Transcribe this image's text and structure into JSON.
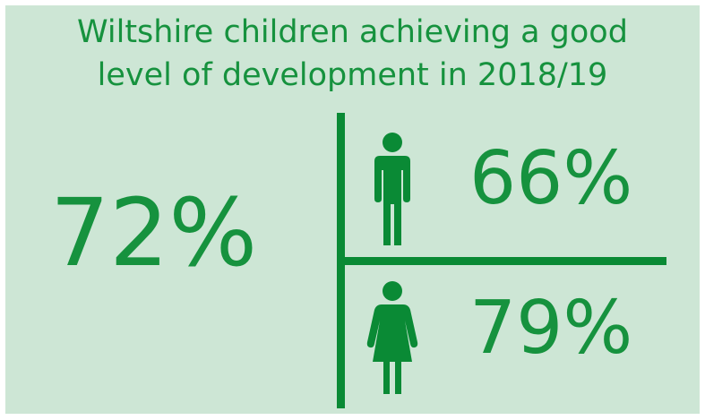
{
  "title": {
    "line1": "Wiltshire children achieving a good",
    "line2": "level of development in 2018/19"
  },
  "stats": {
    "overall": "72%",
    "boys": "66%",
    "girls": "79%"
  },
  "icons": {
    "boy": "male-figure-icon",
    "girl": "female-figure-icon"
  },
  "colors": {
    "background": "#cde6d5",
    "accent": "#16923e"
  }
}
